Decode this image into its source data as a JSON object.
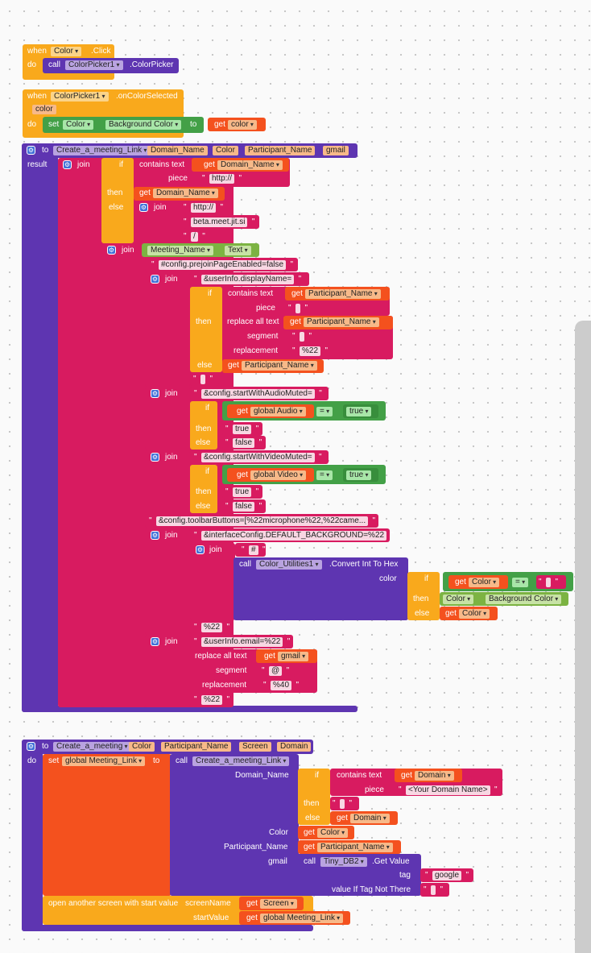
{
  "kw": {
    "when": "when",
    "do": "do",
    "call": "call",
    "set": "set",
    "to": "to",
    "get": "get",
    "result": "result",
    "join": "join",
    "if": "if",
    "then": "then",
    "else": "else",
    "contains_text": "contains text",
    "piece": "piece",
    "replace_all_text": "replace all text",
    "segment": "segment",
    "replacement": "replacement",
    "color": "color",
    "eq": "=",
    "true_kw": "true",
    "open_screen": "open another screen with start value",
    "screenName": "screenName",
    "startValue": "startValue",
    "tag": "tag",
    "value_if_missing": "value If Tag Not There",
    "domain_name": "Domain_Name",
    "participant_name": "Participant_Name",
    "gmail": "gmail",
    "color_cap": "Color"
  },
  "block1": {
    "component": "Color",
    "event": ".Click",
    "call_comp": "ColorPicker1",
    "call_method": ".ColorPicker"
  },
  "block2": {
    "component": "ColorPicker1",
    "event": ".onColorSelected",
    "param": "color",
    "set_comp": "Color",
    "set_prop": "Background Color",
    "get_var": "color"
  },
  "proc1": {
    "name": "Create_a_meeting_Link",
    "params": [
      "Domain_Name",
      "Color",
      "Participant_Name",
      "gmail"
    ],
    "s_http": "http://",
    "s_http2": "http://",
    "s_jitsi": "beta.meet.jit.si",
    "s_slash": "/",
    "meeting_comp": "Meeting_Name",
    "meeting_prop": "Text",
    "s_prejoin": "#config.prejoinPageEnabled=false",
    "s_display": "&userInfo.displayName=",
    "s_space": " ",
    "s_space2": " ",
    "s_pct22": "%22",
    "s_empty": " ",
    "s_audio": "&config.startWithAudioMuted=",
    "global_audio": "global Audio",
    "s_true": "true",
    "s_false": "false",
    "s_video": "&config.startWithVideoMuted=",
    "global_video": "global Video",
    "s_true2": "true",
    "s_false2": "false",
    "s_toolbar": "&config.toolbarButtons=[%22microphone%22,%22came...",
    "s_bg": "&interfaceConfig.DEFAULT_BACKGROUND=%22",
    "s_hash": "#",
    "util_comp": "Color_Utilities1",
    "util_method": ".Convert Int To Hex",
    "get_color": "Color",
    "s_blank": " ",
    "color_comp": "Color",
    "color_prop": "Background Color",
    "get_color2": "Color",
    "s_pct22b": "%22",
    "s_email": "&userInfo.email=%22",
    "s_at": "@",
    "s_40": "%40",
    "s_pct22c": "%22"
  },
  "proc2": {
    "name": "Create_a_meeting",
    "params": [
      "Color",
      "Participant_Name",
      "Screen",
      "Domain"
    ],
    "set_var": "global Meeting_Link",
    "call_proc": "Create_a_meeting_Link",
    "arg_domain": "Domain_Name",
    "arg_color": "Color",
    "arg_participant": "Participant_Name",
    "arg_gmail": "gmail",
    "get_domain": "Domain",
    "s_placeholder": "<Your Domain Name>",
    "s_blank": " ",
    "get_domain2": "Domain",
    "get_color": "Color",
    "get_participant": "Participant_Name",
    "db_comp": "Tiny_DB2",
    "db_method": ".Get Value",
    "s_google": "google",
    "s_blank2": " ",
    "get_screen": "Screen",
    "get_link": "global Meeting_Link"
  }
}
